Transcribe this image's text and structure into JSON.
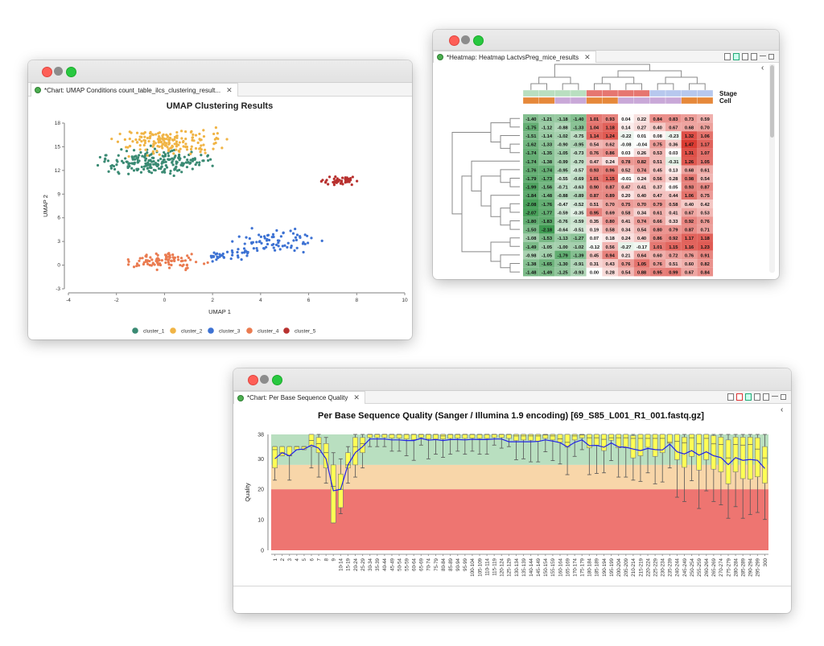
{
  "windows": {
    "umap": {
      "tab_label": "*Chart: UMAP Conditions count_table_ilcs_clustering_result...",
      "tab_close": "✕"
    },
    "heatmap": {
      "tab_label": "*Heatmap: Heatmap LactvsPreg_mice_results",
      "tab_close": "✕",
      "collapse_glyph": "‹"
    },
    "quality": {
      "tab_label": "*Chart: Per Base Sequence Quality",
      "tab_close": "✕",
      "collapse_glyph": "‹"
    }
  },
  "chart_data": [
    {
      "type": "scatter",
      "title": "UMAP Clustering Results",
      "xlabel": "UMAP 1",
      "ylabel": "UMAP 2",
      "xlim": [
        -4,
        10
      ],
      "ylim": [
        -3,
        18
      ],
      "xticks": [
        "-4",
        "-2",
        "0",
        "2",
        "4",
        "6",
        "8",
        "10"
      ],
      "yticks": [
        "-3",
        "0",
        "3",
        "6",
        "9",
        "12",
        "15",
        "18"
      ],
      "legend_placement": "bottom",
      "grid": false,
      "series": [
        {
          "name": "cluster_1",
          "color": "#3a8a73",
          "center": [
            -0.4,
            13.1
          ],
          "sd": [
            1.0,
            0.75
          ],
          "n": 210
        },
        {
          "name": "cluster_2",
          "color": "#f0b445",
          "center": [
            0.2,
            15.6
          ],
          "sd": [
            1.1,
            0.7
          ],
          "n": 170
        },
        {
          "name": "cluster_3",
          "color": "#3d72d3",
          "center": [
            4.7,
            3.0
          ],
          "sd": [
            0.7,
            0.8
          ],
          "n": 110
        },
        {
          "name": "cluster_4",
          "color": "#ea7b50",
          "center": [
            0.0,
            0.5
          ],
          "sd": [
            0.7,
            0.45
          ],
          "n": 95
        },
        {
          "name": "cluster_5",
          "color": "#b8312f",
          "center": [
            7.3,
            10.7
          ],
          "sd": [
            0.35,
            0.28
          ],
          "n": 50
        }
      ]
    },
    {
      "type": "heatmap",
      "row_annotations": [
        "Stage",
        "Cell"
      ],
      "stage_colors": [
        "#b9dfc0",
        "#b9dfc0",
        "#b9dfc0",
        "#b9dfc0",
        "#e67670",
        "#e67670",
        "#e67670",
        "#e67670",
        "#b7c8ee",
        "#b7c8ee",
        "#b7c8ee",
        "#b7c8ee"
      ],
      "cell_colors": [
        "#e6883a",
        "#e6883a",
        "#c9a8d8",
        "#c9a8d8",
        "#e6883a",
        "#e6883a",
        "#c9a8d8",
        "#c9a8d8",
        "#c9a8d8",
        "#c9a8d8",
        "#e6883a",
        "#e6883a"
      ],
      "low_color": "#3d9a50",
      "mid_color": "#ffffff",
      "high_color": "#d9372e",
      "values": [
        [
          "-1.40",
          "-1.21",
          "-1.18",
          "-1.40",
          "1.01",
          "0.93",
          "0.04",
          "0.22",
          "0.84",
          "0.83",
          "0.73",
          "0.59"
        ],
        [
          "-1.75",
          "-1.12",
          "-0.88",
          "-1.33",
          "1.04",
          "1.18",
          "0.14",
          "0.27",
          "0.40",
          "0.67",
          "0.68",
          "0.70"
        ],
        [
          "-1.51",
          "-1.14",
          "-1.02",
          "-0.75",
          "1.14",
          "1.24",
          "-0.22",
          "0.01",
          "0.08",
          "-0.23",
          "1.32",
          "1.06"
        ],
        [
          "-1.62",
          "-1.33",
          "-0.90",
          "-0.95",
          "0.54",
          "0.62",
          "-0.08",
          "-0.04",
          "0.75",
          "0.36",
          "1.47",
          "1.17"
        ],
        [
          "-1.74",
          "-1.35",
          "-1.05",
          "-0.73",
          "0.76",
          "0.86",
          "0.03",
          "0.26",
          "0.53",
          "0.03",
          "1.31",
          "1.07"
        ],
        [
          "-1.74",
          "-1.38",
          "-0.99",
          "-0.70",
          "0.47",
          "0.24",
          "0.78",
          "0.82",
          "0.51",
          "-0.31",
          "1.26",
          "1.05"
        ],
        [
          "-1.76",
          "-1.74",
          "-0.95",
          "-0.57",
          "0.93",
          "0.96",
          "0.52",
          "0.74",
          "0.45",
          "0.13",
          "0.68",
          "0.61"
        ],
        [
          "-1.79",
          "-1.73",
          "-0.55",
          "-0.69",
          "1.01",
          "1.15",
          "-0.01",
          "0.24",
          "0.56",
          "0.28",
          "0.98",
          "0.54"
        ],
        [
          "-1.99",
          "-1.56",
          "-0.71",
          "-0.63",
          "0.90",
          "0.87",
          "0.47",
          "0.41",
          "0.37",
          "0.05",
          "0.93",
          "0.87"
        ],
        [
          "-1.84",
          "-1.48",
          "-0.88",
          "-0.89",
          "0.87",
          "0.89",
          "0.20",
          "0.40",
          "0.47",
          "0.44",
          "1.06",
          "0.75"
        ],
        [
          "-2.08",
          "-1.76",
          "-0.47",
          "-0.52",
          "0.51",
          "0.70",
          "0.75",
          "0.70",
          "0.79",
          "0.58",
          "0.40",
          "0.42"
        ],
        [
          "-2.07",
          "-1.77",
          "-0.59",
          "-0.35",
          "0.95",
          "0.69",
          "0.58",
          "0.34",
          "0.61",
          "0.41",
          "0.67",
          "0.53"
        ],
        [
          "-1.80",
          "-1.83",
          "-0.76",
          "-0.59",
          "0.35",
          "0.80",
          "0.41",
          "0.74",
          "0.66",
          "0.33",
          "0.92",
          "0.76"
        ],
        [
          "-1.50",
          "-2.18",
          "-0.64",
          "-0.51",
          "0.19",
          "0.58",
          "0.34",
          "0.54",
          "0.80",
          "0.79",
          "0.87",
          "0.71"
        ],
        [
          "-1.08",
          "-1.53",
          "-1.13",
          "-1.27",
          "0.07",
          "0.18",
          "0.24",
          "0.40",
          "0.86",
          "0.92",
          "1.17",
          "1.18"
        ],
        [
          "-1.49",
          "-1.05",
          "-1.00",
          "-1.02",
          "-0.12",
          "0.56",
          "-0.27",
          "-0.17",
          "1.01",
          "1.15",
          "1.16",
          "1.23"
        ],
        [
          "-0.98",
          "-1.05",
          "-1.79",
          "-1.39",
          "0.45",
          "0.94",
          "0.21",
          "0.64",
          "0.60",
          "0.72",
          "0.76",
          "0.91"
        ],
        [
          "-1.38",
          "-1.65",
          "-1.30",
          "-0.91",
          "0.31",
          "0.43",
          "0.76",
          "1.05",
          "0.76",
          "0.51",
          "0.60",
          "0.82"
        ],
        [
          "-1.48",
          "-1.49",
          "-1.25",
          "-0.93",
          "0.00",
          "0.28",
          "0.54",
          "0.88",
          "0.95",
          "0.99",
          "0.67",
          "0.84"
        ]
      ]
    },
    {
      "type": "boxplot",
      "title": "Per Base Sequence Quality (Sanger / Illumina 1.9 encoding) [69_S85_L001_R1_001.fastq.gz]",
      "ylabel": "Quality",
      "ylim": [
        0,
        38
      ],
      "yticks": [
        "0",
        "10",
        "20",
        "30",
        "38"
      ],
      "bands": [
        {
          "from": 28,
          "to": 38,
          "color": "#b9dfc0"
        },
        {
          "from": 20,
          "to": 28,
          "color": "#f8d6a9"
        },
        {
          "from": 0,
          "to": 20,
          "color": "#ee7571"
        }
      ],
      "box_color": "#ffff55",
      "mean_color": "#2323e6",
      "categories": [
        "1",
        "2",
        "3",
        "4",
        "5",
        "6",
        "7",
        "8",
        "9",
        "10-14",
        "15-19",
        "20-24",
        "25-29",
        "30-34",
        "35-39",
        "40-44",
        "45-49",
        "50-54",
        "55-59",
        "60-64",
        "65-69",
        "70-74",
        "75-79",
        "80-84",
        "85-89",
        "90-94",
        "95-99",
        "100-104",
        "105-109",
        "110-114",
        "115-119",
        "120-124",
        "125-129",
        "130-134",
        "135-139",
        "140-144",
        "145-149",
        "150-154",
        "155-159",
        "160-164",
        "165-169",
        "170-174",
        "175-179",
        "180-184",
        "185-189",
        "190-194",
        "195-199",
        "200-204",
        "205-209",
        "210-214",
        "215-219",
        "220-224",
        "225-229",
        "230-234",
        "235-239",
        "240-244",
        "245-249",
        "250-254",
        "255-259",
        "260-264",
        "265-269",
        "270-274",
        "275-279",
        "280-284",
        "285-289",
        "290-294",
        "295-299",
        "300"
      ],
      "stats_fields": [
        "low_whisker",
        "q1",
        "median",
        "q3",
        "high_whisker",
        "mean"
      ],
      "stats": [
        [
          23,
          27,
          33,
          34,
          34,
          30
        ],
        [
          31,
          31,
          32,
          34,
          34,
          32
        ],
        [
          23,
          31,
          31,
          34,
          34,
          31
        ],
        [
          33,
          33,
          34,
          34,
          34,
          33
        ],
        [
          33,
          33,
          34,
          34,
          34,
          33.2
        ],
        [
          27,
          34,
          36,
          38,
          38,
          34.5
        ],
        [
          24,
          32,
          35,
          37,
          38,
          33.5
        ],
        [
          22,
          27,
          32,
          35,
          37,
          30
        ],
        [
          9,
          9,
          21,
          28,
          32,
          19.5
        ],
        [
          12,
          14,
          20,
          25,
          30,
          20
        ],
        [
          22,
          27,
          28,
          32,
          34,
          28
        ],
        [
          24,
          28,
          34,
          37,
          38,
          32
        ],
        [
          27,
          32,
          35,
          37,
          38,
          34
        ],
        [
          34,
          37,
          38,
          38,
          38,
          36.5
        ],
        [
          34,
          37,
          38,
          38,
          38,
          36.5
        ],
        [
          34,
          37,
          38,
          38,
          38,
          36.5
        ],
        [
          32.5,
          36.8,
          38,
          38,
          38,
          36.2
        ],
        [
          32.5,
          36.8,
          38,
          38,
          38,
          36.2
        ],
        [
          31,
          36.5,
          38,
          38,
          38,
          36
        ],
        [
          29.5,
          36.3,
          38,
          38,
          38,
          36
        ],
        [
          34.5,
          37,
          38,
          38,
          38,
          36.7
        ],
        [
          30,
          36.5,
          38,
          38,
          38,
          36.1
        ],
        [
          31.5,
          36.5,
          38,
          38,
          38,
          36.3
        ],
        [
          30.5,
          36.5,
          37.5,
          38,
          38,
          36
        ],
        [
          31.5,
          36.7,
          38,
          38,
          38,
          36.3
        ],
        [
          32.5,
          36.8,
          38,
          38,
          38,
          36.3
        ],
        [
          31.5,
          36.7,
          38,
          38,
          38,
          36.2
        ],
        [
          32.5,
          36.8,
          38,
          38,
          38,
          36.4
        ],
        [
          31.5,
          36.7,
          38,
          38,
          38,
          36.3
        ],
        [
          31.5,
          36.7,
          38,
          38,
          38,
          36.3
        ],
        [
          34.5,
          37,
          38,
          38,
          38,
          36.5
        ],
        [
          33.5,
          37,
          38,
          38,
          38,
          36.5
        ],
        [
          34,
          36.7,
          38,
          38,
          38,
          35.6
        ],
        [
          29.7,
          36,
          37.5,
          38,
          38,
          35.6
        ],
        [
          30,
          36.2,
          37.5,
          38,
          38,
          35.6
        ],
        [
          29,
          36.1,
          37.5,
          38,
          38,
          35.6
        ],
        [
          29,
          35.8,
          37.5,
          38,
          38,
          35.7
        ],
        [
          32.3,
          36.7,
          37.8,
          38,
          38,
          36.2
        ],
        [
          29.4,
          36.2,
          37.5,
          38,
          38,
          35.8
        ],
        [
          28.3,
          35.4,
          36.5,
          38,
          38,
          35.3
        ],
        [
          24.8,
          33.8,
          35.4,
          38,
          38,
          33.9
        ],
        [
          30.8,
          36.2,
          37.5,
          38,
          38,
          35.4
        ],
        [
          33,
          36.9,
          37.8,
          38,
          38,
          36.2
        ],
        [
          24.8,
          33.6,
          36.9,
          38,
          38,
          34.3
        ],
        [
          25.2,
          34.5,
          36.9,
          38,
          38,
          34.4
        ],
        [
          25.4,
          32.7,
          36.4,
          38,
          38,
          33.8
        ],
        [
          29.4,
          36.1,
          36.9,
          38,
          38,
          35.2
        ],
        [
          24,
          33.6,
          36.9,
          38,
          38,
          33.9
        ],
        [
          24,
          33.6,
          36.9,
          38,
          38,
          33.8
        ],
        [
          23,
          30.3,
          36.7,
          37.6,
          38,
          33.2
        ],
        [
          22.6,
          31,
          36.7,
          38,
          38,
          32.7
        ],
        [
          25.4,
          33.8,
          36.7,
          38,
          38,
          33.4
        ],
        [
          21.8,
          30.8,
          36.7,
          38,
          38,
          33
        ],
        [
          22.4,
          32,
          36.7,
          38,
          38,
          32.9
        ],
        [
          27,
          35.1,
          35.4,
          38,
          38,
          34.8
        ],
        [
          17.4,
          29.7,
          35.8,
          38,
          38,
          32.3
        ],
        [
          16,
          27.2,
          35.2,
          37.1,
          38,
          31.6
        ],
        [
          22.8,
          30.8,
          36.9,
          38,
          38,
          32.7
        ],
        [
          13.7,
          26.3,
          34.9,
          38,
          38,
          31.2
        ],
        [
          19.5,
          29.7,
          36.7,
          38,
          38,
          32.3
        ],
        [
          16,
          26.6,
          34.9,
          37.6,
          38,
          31
        ],
        [
          14.9,
          25.7,
          34.7,
          37.1,
          38,
          30.4
        ],
        [
          10.5,
          21.8,
          30.3,
          36.2,
          38,
          28.1
        ],
        [
          14.3,
          25.7,
          34.7,
          37.1,
          38,
          30.4
        ],
        [
          10.5,
          23.5,
          34.5,
          37.1,
          38,
          29.5
        ],
        [
          11.7,
          23.3,
          34.7,
          37.1,
          38,
          29.8
        ],
        [
          12.4,
          24.1,
          33.2,
          36.9,
          38,
          29.5
        ],
        [
          10.1,
          22,
          30.3,
          34,
          38,
          26.8
        ]
      ]
    }
  ]
}
